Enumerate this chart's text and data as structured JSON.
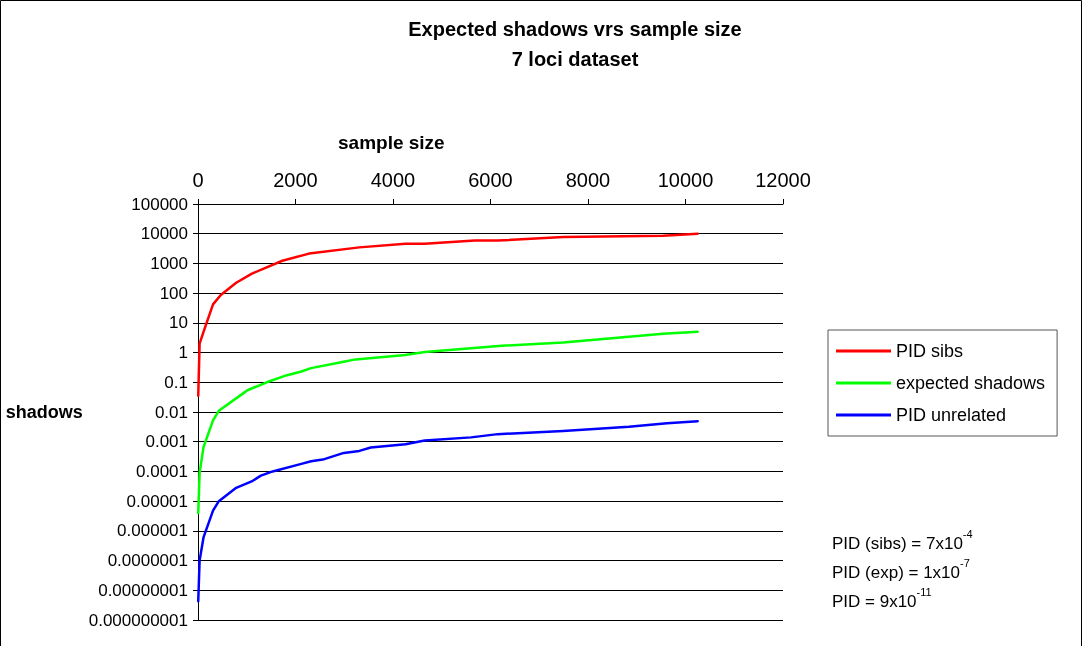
{
  "chart_data": {
    "type": "line",
    "title": "Expected shadows vrs sample size",
    "subtitle": "7 loci dataset",
    "xlabel": "sample size",
    "ylabel": "shadows",
    "xlim": [
      0,
      12000
    ],
    "xticks": [
      0,
      2000,
      4000,
      6000,
      8000,
      10000,
      12000
    ],
    "ylim": [
      1e-09,
      100000
    ],
    "log": "y",
    "yticks": [
      {
        "value": 1e-09,
        "label": "0.000000001"
      },
      {
        "value": 1e-08,
        "label": "0.00000001"
      },
      {
        "value": 1e-07,
        "label": "0.0000001"
      },
      {
        "value": 1e-06,
        "label": "0.000001"
      },
      {
        "value": 1e-05,
        "label": "0.00001"
      },
      {
        "value": 0.0001,
        "label": "0.0001"
      },
      {
        "value": 0.001,
        "label": "0.001"
      },
      {
        "value": 0.01,
        "label": "0.01"
      },
      {
        "value": 0.1,
        "label": "0.1"
      },
      {
        "value": 1,
        "label": "1"
      },
      {
        "value": 10,
        "label": "10"
      },
      {
        "value": 100,
        "label": "100"
      },
      {
        "value": 1000,
        "label": "1000"
      },
      {
        "value": 10000,
        "label": "10000"
      },
      {
        "value": 100000,
        "label": "100000"
      }
    ],
    "grid": "y",
    "legend": "right",
    "marker": "none",
    "line_style": "solid",
    "annotations": [
      "PID (sibs) = 7x10$^{-4}$",
      "PID (exp) = 1x10$^{-7}$",
      "PID = 9x10$^{-11}$"
    ],
    "series": [
      {
        "name": "PID sibs",
        "color": "#ff0000",
        "x": [
          5,
          33,
          113,
          308,
          468,
          783,
          1097,
          1729,
          2280,
          3310,
          4255,
          4650,
          5680,
          6150,
          7490,
          9540,
          10250
        ],
        "values": [
          0.035,
          2,
          5,
          42,
          87,
          224,
          447,
          1230,
          2140,
          3470,
          4570,
          4570,
          5900,
          5900,
          7700,
          8500,
          10000
        ]
      },
      {
        "name": "expected shadows",
        "color": "#00ff00",
        "x": [
          5,
          33,
          113,
          308,
          427,
          940,
          1015,
          1410,
          1810,
          2120,
          2320,
          2990,
          3230,
          4255,
          4650,
          5600,
          6230,
          7490,
          8840,
          9540,
          10250
        ],
        "values": [
          4e-06,
          9e-05,
          0.00066,
          0.0052,
          0.011,
          0.044,
          0.054,
          0.1,
          0.17,
          0.23,
          0.3,
          0.49,
          0.59,
          0.83,
          1.05,
          1.4,
          1.7,
          2.2,
          3.4,
          4.3,
          5
        ]
      },
      {
        "name": "PID unrelated",
        "color": "#0000ff",
        "x": [
          5,
          33,
          113,
          308,
          427,
          783,
          1100,
          1290,
          1530,
          2120,
          2320,
          2560,
          2990,
          3310,
          3545,
          4255,
          4650,
          5600,
          6150,
          7490,
          8840,
          9620,
          10250
        ],
        "values": [
          4.3e-09,
          1e-07,
          6e-07,
          4.8e-06,
          1e-05,
          2.8e-05,
          4.6e-05,
          7.2e-05,
          0.0001,
          0.00018,
          0.00022,
          0.00025,
          0.00042,
          0.00049,
          0.00064,
          0.00082,
          0.0011,
          0.0014,
          0.0018,
          0.0023,
          0.0032,
          0.0042,
          0.0049
        ]
      }
    ]
  }
}
